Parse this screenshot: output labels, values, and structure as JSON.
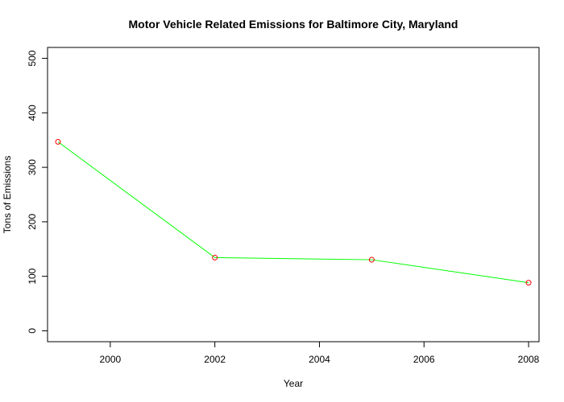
{
  "chart_data": {
    "type": "line",
    "title": "Motor Vehicle Related Emissions for Baltimore City, Maryland",
    "xlabel": "Year",
    "ylabel": "Tons of Emissions",
    "x": [
      1999,
      2002,
      2005,
      2008
    ],
    "series": [
      {
        "values": [
          346.8,
          134.3,
          130.4,
          88.3
        ]
      }
    ],
    "xlim": [
      1998.8,
      2008.2
    ],
    "ylim": [
      -20,
      520
    ],
    "xticks": [
      "2000",
      "2002",
      "2004",
      "2006",
      "2008"
    ],
    "yticks": [
      "0",
      "100",
      "200",
      "300",
      "400",
      "500"
    ],
    "line_color": "#00ff00",
    "marker_color": "#ff0000",
    "marker": "open-circle",
    "grid": false,
    "legend": "none"
  }
}
